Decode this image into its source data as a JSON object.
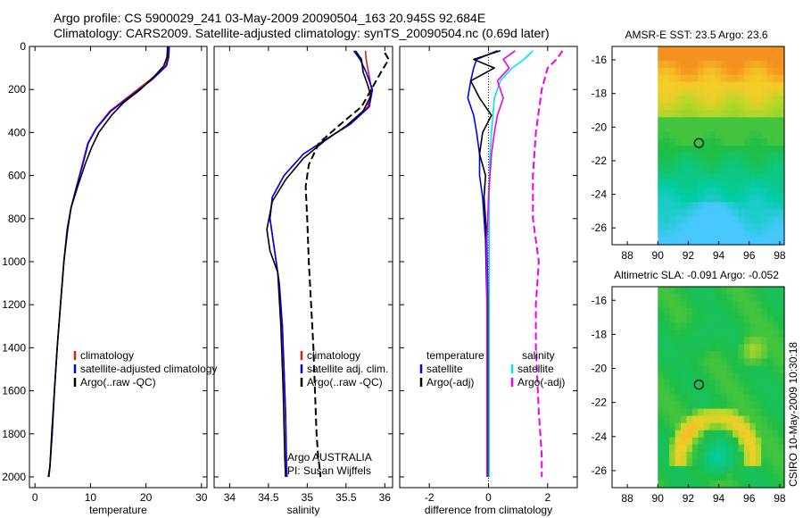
{
  "titles": {
    "line1": "Argo profile: CS 5900029_241 03-May-2009 20090504_163 20.945S 92.684E",
    "line2": "Climatology: CARS2009. Satellite-adjusted climatology: synTS_20090504.nc (0.69d later)"
  },
  "side_label": "CSIRO 10-May-2009 10:30:18",
  "colors": {
    "climatology": "#e41a1c",
    "satellite": "#0000ee",
    "argo": "#000000",
    "cyan": "#00e5ee",
    "magenta": "#ee00ee"
  },
  "chart_data": [
    {
      "type": "line",
      "xlabel": "temperature",
      "xlim": [
        -1,
        31
      ],
      "ylim": [
        2050,
        0
      ],
      "xticks": [
        0,
        10,
        20,
        30
      ],
      "yticks": [
        0,
        200,
        400,
        600,
        800,
        1000,
        1200,
        1400,
        1600,
        1800,
        2000
      ],
      "legend": [
        "climatology",
        "satellite-adjusted climatology",
        "Argo(..raw -QC)"
      ],
      "series": [
        {
          "name": "climatology",
          "color": "#e41a1c",
          "x": [
            24,
            24,
            23.5,
            21,
            17,
            13.5,
            11,
            9.5,
            8.5,
            7.5,
            6.5,
            5.8,
            5.2,
            4.6,
            4.0,
            3.5,
            3.1,
            2.7,
            2.5
          ],
          "y": [
            0,
            50,
            90,
            150,
            230,
            300,
            380,
            450,
            550,
            650,
            750,
            850,
            1000,
            1200,
            1400,
            1600,
            1800,
            1950,
            2000
          ]
        },
        {
          "name": "satellite-adjusted climatology",
          "color": "#0000ee",
          "x": [
            24.2,
            24.1,
            23.7,
            21.3,
            17.3,
            13.7,
            11.1,
            9.6,
            8.6,
            7.5,
            6.5,
            5.8,
            5.2,
            4.6,
            4.0,
            3.5,
            3.1,
            2.7,
            2.5
          ],
          "y": [
            0,
            50,
            90,
            150,
            230,
            300,
            380,
            450,
            550,
            650,
            750,
            850,
            1000,
            1200,
            1400,
            1600,
            1800,
            1950,
            2000
          ]
        },
        {
          "name": "Argo(..raw -QC)",
          "color": "#000000",
          "x": [
            23.9,
            23.8,
            23.2,
            21.5,
            19,
            16,
            13.8,
            11.5,
            10.2,
            9,
            7.7,
            6.5,
            5.9,
            5.2,
            4.6,
            4.0,
            3.5,
            3.0,
            2.7,
            2.4
          ],
          "y": [
            0,
            50,
            90,
            140,
            200,
            260,
            320,
            400,
            470,
            550,
            650,
            750,
            850,
            1000,
            1200,
            1400,
            1600,
            1800,
            1950,
            2000
          ]
        }
      ]
    },
    {
      "type": "line",
      "xlabel": "salinity",
      "xlim": [
        33.8,
        36.1
      ],
      "ylim": [
        2050,
        0
      ],
      "xticks": [
        34,
        34.5,
        35,
        35.5,
        36
      ],
      "legend": [
        "climatology",
        "satellite adj. clim.",
        "Argo(..raw -QC)"
      ],
      "note": [
        "Argo AUSTRALIA",
        "PI: Susan Wijffels"
      ],
      "series": [
        {
          "name": "climatology",
          "color": "#e41a1c",
          "x": [
            35.75,
            35.76,
            35.79,
            35.83,
            35.78,
            35.55,
            35.25,
            34.95,
            34.7,
            34.55,
            34.52,
            34.58,
            34.64,
            34.68,
            34.7,
            34.72,
            34.73,
            34.74
          ],
          "y": [
            20,
            60,
            120,
            200,
            280,
            360,
            430,
            500,
            600,
            700,
            800,
            950,
            1100,
            1300,
            1500,
            1700,
            1900,
            2000
          ]
        },
        {
          "name": "satellite adj. clim.",
          "color": "#0000ee",
          "x": [
            35.6,
            35.68,
            35.76,
            35.84,
            35.8,
            35.56,
            35.25,
            34.95,
            34.7,
            34.55,
            34.52,
            34.58,
            34.64,
            34.68,
            34.7,
            34.72,
            34.73,
            34.74
          ],
          "y": [
            20,
            60,
            120,
            200,
            280,
            360,
            430,
            500,
            600,
            700,
            800,
            950,
            1100,
            1300,
            1500,
            1700,
            1900,
            2000
          ]
        },
        {
          "name": "Argo(..raw -QC)",
          "color": "#000000",
          "x": [
            35.62,
            35.7,
            35.72,
            35.78,
            35.82,
            35.72,
            35.5,
            35.22,
            34.95,
            34.72,
            34.55,
            34.48,
            34.52,
            34.62,
            34.66,
            34.69,
            34.71,
            34.72
          ],
          "y": [
            20,
            60,
            120,
            180,
            230,
            300,
            370,
            440,
            520,
            620,
            720,
            850,
            950,
            1050,
            1300,
            1600,
            1900,
            2000
          ]
        },
        {
          "name": "Argo raw",
          "color": "#000000",
          "dashed": true,
          "x": [
            36.0,
            36.05,
            35.95,
            35.7,
            35.4,
            35.15,
            35.02,
            34.98,
            35.0,
            35.02,
            35.05,
            35.08,
            35.1,
            35.12,
            35.14,
            35.16,
            35.17
          ],
          "y": [
            30,
            60,
            120,
            280,
            370,
            450,
            550,
            650,
            800,
            1000,
            1200,
            1400,
            1600,
            1800,
            1900,
            1960,
            2000
          ]
        }
      ]
    },
    {
      "type": "line",
      "xlabel": "difference from climatology",
      "xlim": [
        -3,
        3
      ],
      "ylim": [
        2050,
        0
      ],
      "xticks": [
        -2,
        0,
        2
      ],
      "legend_temperature": [
        "temperature",
        "satellite",
        "Argo(-adj)"
      ],
      "legend_salinity": [
        "salinity",
        "satellite",
        "Argo(-adj)"
      ],
      "series": [
        {
          "name": "temperature satellite",
          "color": "#0000ee",
          "x": [
            0.3,
            -0.4,
            -0.5,
            -0.6,
            -0.7,
            -0.5,
            -0.4,
            -0.3,
            -0.3,
            -0.2,
            -0.1,
            -0.05,
            -0.05,
            -0.05
          ],
          "y": [
            20,
            60,
            100,
            160,
            240,
            320,
            400,
            500,
            600,
            700,
            900,
            1200,
            1600,
            2000
          ]
        },
        {
          "name": "temperature Argo(-adj)",
          "color": "#000000",
          "x": [
            0.4,
            -0.5,
            0.2,
            -0.6,
            -0.3,
            0.1,
            -0.2,
            -0.3,
            -0.1,
            -0.15,
            -0.05,
            -0.02,
            -0.02,
            -0.02
          ],
          "y": [
            20,
            60,
            100,
            160,
            240,
            320,
            400,
            500,
            600,
            700,
            900,
            1200,
            1600,
            2000
          ]
        },
        {
          "name": "salinity satellite",
          "color": "#00e5ee",
          "x": [
            1.5,
            1.2,
            0.8,
            0.4,
            0.2,
            0.15,
            0.1,
            0.05,
            0.03,
            0.02,
            0.02,
            0.02,
            0.02,
            0.02
          ],
          "y": [
            20,
            60,
            100,
            160,
            240,
            320,
            400,
            500,
            600,
            700,
            900,
            1200,
            1600,
            2000
          ]
        },
        {
          "name": "salinity Argo(-adj)",
          "color": "#ee00ee",
          "x": [
            0.9,
            0.5,
            0.7,
            0.3,
            0.5,
            0.3,
            0.2,
            0.1,
            0.05,
            0.0,
            -0.05,
            -0.05,
            -0.05,
            -0.05
          ],
          "y": [
            20,
            60,
            100,
            160,
            240,
            320,
            400,
            500,
            600,
            700,
            900,
            1200,
            1600,
            2000
          ]
        },
        {
          "name": "salinity raw",
          "color": "#ee00ee",
          "dashed": true,
          "x": [
            2.5,
            2.3,
            2.0,
            1.8,
            1.7,
            1.6,
            1.5,
            1.5,
            1.7,
            1.6,
            1.6,
            1.7,
            1.8,
            1.8
          ],
          "y": [
            20,
            60,
            100,
            200,
            300,
            400,
            600,
            800,
            1000,
            1200,
            1400,
            1700,
            1900,
            2000
          ]
        }
      ]
    },
    {
      "type": "heatmap",
      "title": "AMSR-E SST: 23.5 Argo: 23.6",
      "xlim": [
        87,
        98.3
      ],
      "ylim": [
        -27,
        -15.2
      ],
      "xticks": [
        88,
        90,
        92,
        94,
        96,
        98
      ],
      "yticks": [
        -16,
        -18,
        -20,
        -22,
        -24,
        -26
      ],
      "data_x_start": 90,
      "marker": {
        "lon": 92.7,
        "lat": -20.95
      }
    },
    {
      "type": "heatmap",
      "title": "Altimetric SLA: -0.091 Argo: -0.052",
      "xlim": [
        87,
        98.3
      ],
      "ylim": [
        -27,
        -15.2
      ],
      "xticks": [
        88,
        90,
        92,
        94,
        96,
        98
      ],
      "yticks": [
        -16,
        -18,
        -20,
        -22,
        -24,
        -26
      ],
      "data_x_start": 90,
      "marker": {
        "lon": 92.7,
        "lat": -20.95
      }
    }
  ]
}
